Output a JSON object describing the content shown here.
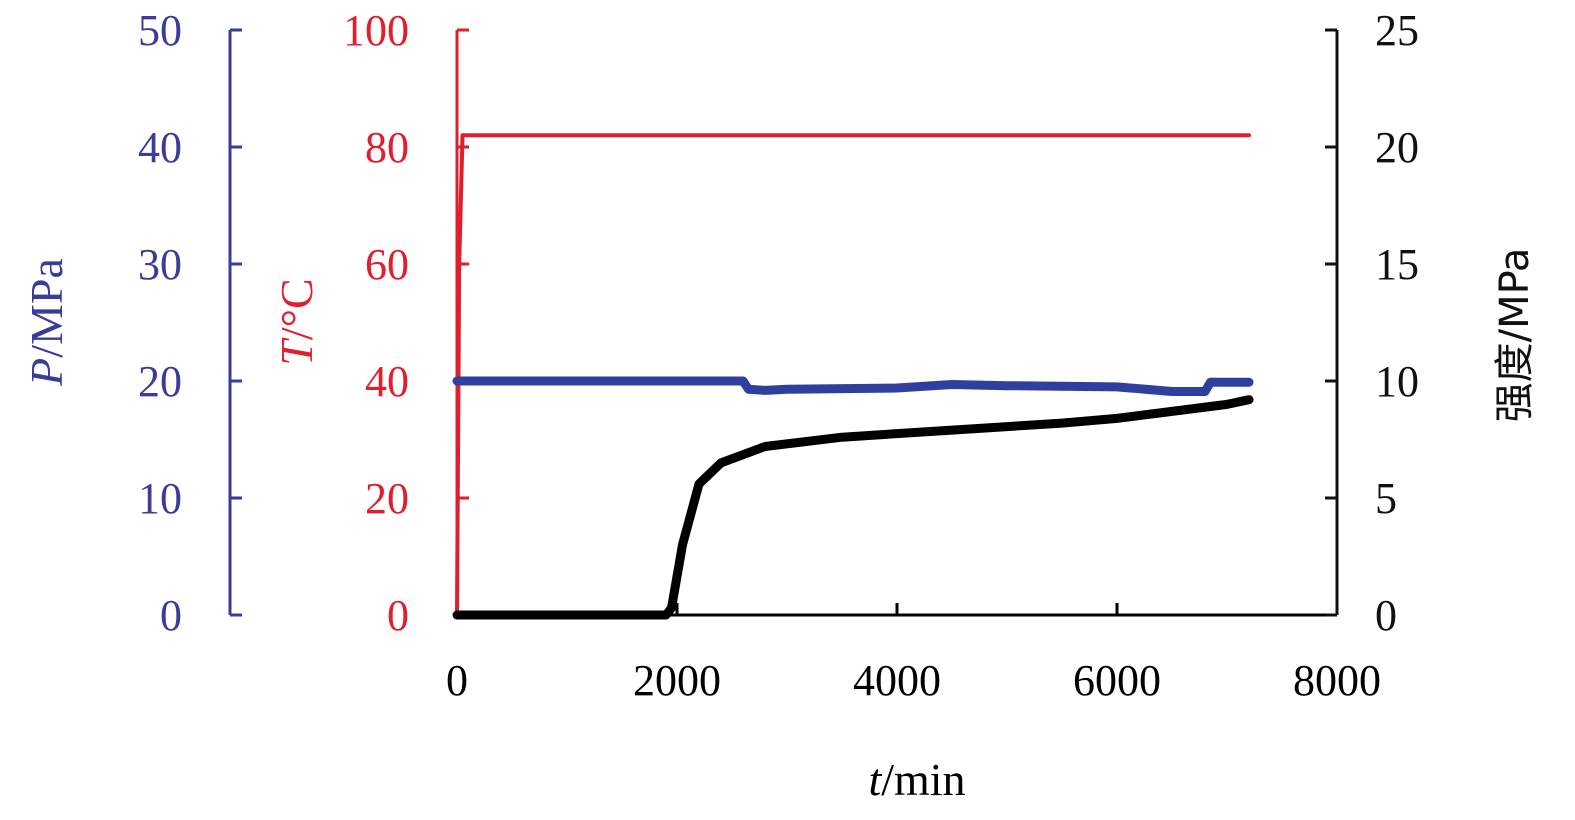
{
  "chart_data": {
    "type": "line",
    "title": "",
    "x_axis": {
      "label_var": "t",
      "label_unit": "/min",
      "range": [
        0,
        8000
      ],
      "ticks": [
        0,
        2000,
        4000,
        6000,
        8000
      ],
      "tick_labels": [
        "0",
        "2000",
        "4000",
        "6000",
        "8000"
      ]
    },
    "y_axes": [
      {
        "id": "pressure",
        "label_var": "P",
        "label_unit": "/MPa",
        "color": "#3b3b9a",
        "range": [
          0,
          50
        ],
        "ticks": [
          0,
          10,
          20,
          30,
          40,
          50
        ],
        "tick_labels": [
          "0",
          "10",
          "20",
          "30",
          "40",
          "50"
        ]
      },
      {
        "id": "temperature",
        "label_var": "T",
        "label_unit": "/°C",
        "color": "#e01e2e",
        "range": [
          0,
          100
        ],
        "ticks": [
          0,
          20,
          40,
          60,
          80,
          100
        ],
        "tick_labels": [
          "0",
          "20",
          "40",
          "60",
          "80",
          "100"
        ]
      },
      {
        "id": "strength",
        "label": "强度/MPa",
        "color": "#111111",
        "range": [
          0,
          25
        ],
        "ticks": [
          0,
          5,
          10,
          15,
          20,
          25
        ],
        "tick_labels": [
          "0",
          "5",
          "10",
          "15",
          "20",
          "25"
        ]
      }
    ],
    "series": [
      {
        "axis": "temperature",
        "color": "#e01e2e",
        "x": [
          0,
          20,
          50,
          100,
          500,
          2000,
          4000,
          6000,
          7200
        ],
        "y": [
          0,
          60,
          82,
          82,
          82,
          82,
          82,
          82,
          82
        ]
      },
      {
        "axis": "pressure",
        "color": "#2f3f9e",
        "x": [
          0,
          1000,
          2000,
          2600,
          2650,
          2800,
          3000,
          4000,
          4500,
          5000,
          6000,
          6500,
          6800,
          6850,
          7200
        ],
        "y": [
          20,
          20,
          20,
          20,
          19.3,
          19.2,
          19.3,
          19.4,
          19.7,
          19.6,
          19.5,
          19.1,
          19.1,
          19.9,
          19.9
        ]
      },
      {
        "axis": "strength",
        "color": "#000000",
        "x": [
          0,
          1900,
          1950,
          2050,
          2200,
          2400,
          2800,
          3500,
          4500,
          5500,
          6000,
          6500,
          7000,
          7200
        ],
        "y": [
          0,
          0,
          0.3,
          3,
          5.6,
          6.5,
          7.2,
          7.6,
          7.9,
          8.2,
          8.4,
          8.7,
          9.0,
          9.2
        ]
      }
    ]
  }
}
